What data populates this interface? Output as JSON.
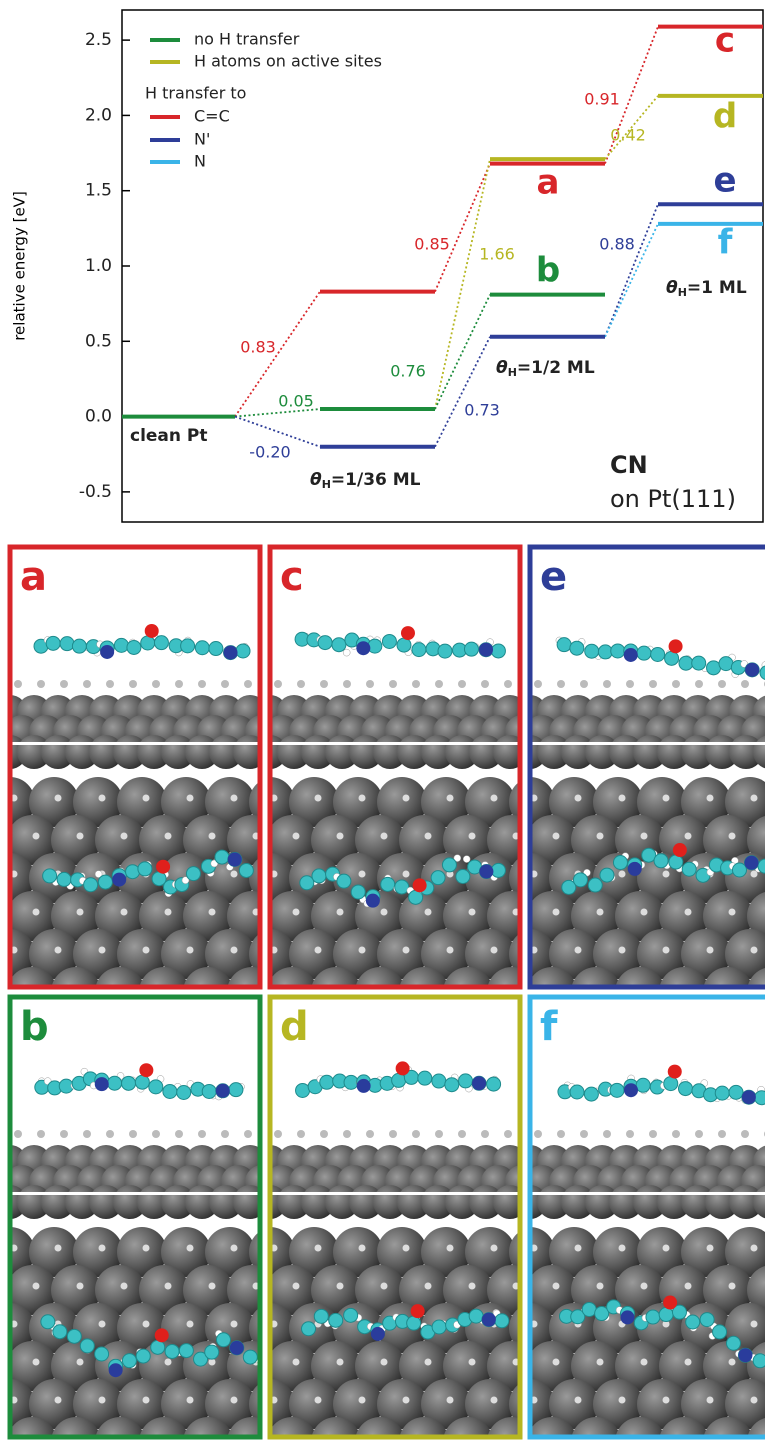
{
  "chart_data": {
    "type": "energy-levels",
    "y_label": "relative energy [eV]",
    "ylim": [
      -0.7,
      2.7
    ],
    "yticks": [
      -0.5,
      {
        "value": 0,
        "label": "0.0"
      },
      0.5,
      {
        "value": 1,
        "label": "1.0"
      },
      1.5,
      {
        "value": 2,
        "label": "2.0"
      },
      2.5
    ],
    "categories": [
      "clean Pt",
      {
        "symbol": "θ",
        "subscript": "H",
        "text": "=1/36 ML"
      },
      {
        "symbol": "θ",
        "subscript": "H",
        "text": "=1/2 ML"
      },
      {
        "symbol": "θ",
        "subscript": "H",
        "text": "=1 ML"
      }
    ],
    "legend_header": "H transfer to",
    "series": [
      {
        "name": "no H transfer",
        "color": "#1d8c3c",
        "values": [
          0,
          0.05,
          0.81,
          null
        ]
      },
      {
        "name": "H atoms on active sites",
        "color": "#b6b622",
        "values": [
          null,
          null,
          1.71,
          2.13
        ]
      },
      {
        "name": "C=C",
        "color": "#d8262a",
        "values": [
          null,
          0.83,
          1.68,
          2.59
        ]
      },
      {
        "name": "N'",
        "color": "#2e3e98",
        "values": [
          null,
          -0.2,
          0.53,
          1.41
        ]
      },
      {
        "name": "N",
        "color": "#3ab4e8",
        "values": [
          null,
          null,
          null,
          1.28
        ]
      }
    ],
    "annotations": [
      {
        "text": "0.83",
        "color": "#d8262a"
      },
      {
        "text": "0.05",
        "color": "#1d8c3c"
      },
      {
        "text": "-0.20",
        "color": "#2e3e98"
      },
      {
        "text": "0.85",
        "color": "#d8262a"
      },
      {
        "text": "1.66",
        "color": "#b6b622"
      },
      {
        "text": "0.76",
        "color": "#1d8c3c"
      },
      {
        "text": "0.73",
        "color": "#2e3e98"
      },
      {
        "text": "0.88",
        "color": "#2e3e98"
      },
      {
        "text": "0.91",
        "color": "#d8262a"
      },
      {
        "text": "0.42",
        "color": "#b6b622"
      }
    ],
    "level_labels": [
      {
        "text": "a",
        "color": "#d8262a"
      },
      {
        "text": "b",
        "color": "#1d8c3c"
      },
      {
        "text": "c",
        "color": "#d8262a"
      },
      {
        "text": "d",
        "color": "#b6b622"
      },
      {
        "text": "e",
        "color": "#2e3e98"
      },
      {
        "text": "f",
        "color": "#3ab4e8"
      }
    ],
    "system": "CN",
    "surface": "on Pt(111)"
  },
  "panels": [
    {
      "label": "a",
      "color": "#d8262a"
    },
    {
      "label": "c",
      "color": "#d8262a"
    },
    {
      "label": "e",
      "color": "#2e3e98"
    },
    {
      "label": "b",
      "color": "#1d8c3c"
    },
    {
      "label": "d",
      "color": "#b6b622"
    },
    {
      "label": "f",
      "color": "#3ab4e8"
    }
  ]
}
